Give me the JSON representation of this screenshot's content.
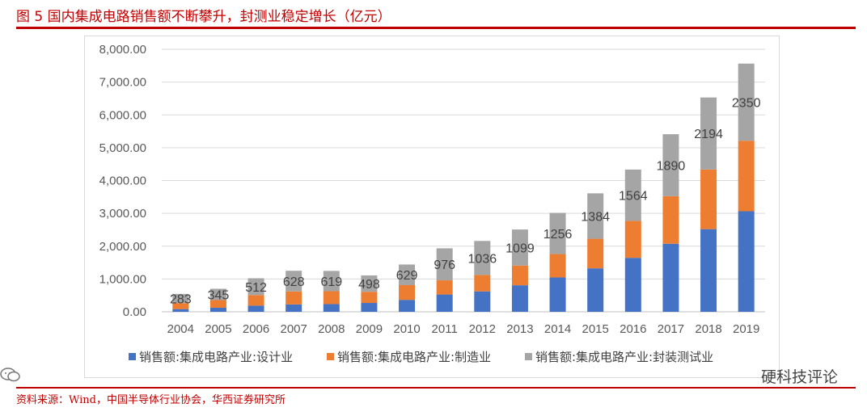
{
  "figure": {
    "title": "图 5   国内集成电路销售额不断攀升，封测业稳定增长（亿元）",
    "source": "资料来源：Wind，中国半导体行业协会，华西证券研究所",
    "watermark": "硬科技评论"
  },
  "colors": {
    "accent": "#c00000",
    "design": "#4472c4",
    "manufacturing": "#ed7d31",
    "packaging": "#a5a5a5"
  },
  "chart_data": {
    "type": "bar",
    "stacked": true,
    "categories": [
      "2004",
      "2005",
      "2006",
      "2007",
      "2008",
      "2009",
      "2010",
      "2011",
      "2012",
      "2013",
      "2014",
      "2015",
      "2016",
      "2017",
      "2018",
      "2019"
    ],
    "series": [
      {
        "name": "销售额:集成电路产业:设计业",
        "color": "#4472c4",
        "values": [
          82,
          124,
          187,
          225,
          235,
          270,
          364,
          527,
          622,
          809,
          1047,
          1325,
          1644,
          2074,
          2519,
          3064
        ]
      },
      {
        "name": "销售额:集成电路产业:制造业",
        "color": "#ed7d31",
        "values": [
          180,
          233,
          323,
          397,
          392,
          341,
          448,
          432,
          501,
          600,
          712,
          901,
          1127,
          1448,
          1818,
          2149
        ]
      },
      {
        "name": "销售额:集成电路产业:封装测试业",
        "color": "#a5a5a5",
        "values": [
          283,
          345,
          512,
          628,
          619,
          498,
          629,
          976,
          1036,
          1099,
          1256,
          1384,
          1564,
          1890,
          2194,
          2350
        ]
      }
    ],
    "data_labels": [
      "283",
      "345",
      "512",
      "628",
      "619",
      "498",
      "629",
      "976",
      "1036",
      "1099",
      "1256",
      "1384",
      "1564",
      "1890",
      "2194",
      "2350"
    ],
    "y_ticks": [
      "0.00",
      "1,000.00",
      "2,000.00",
      "3,000.00",
      "4,000.00",
      "5,000.00",
      "6,000.00",
      "7,000.00",
      "8,000.00"
    ],
    "ylim": [
      0,
      8000
    ],
    "grid": true,
    "legend_position": "bottom"
  }
}
